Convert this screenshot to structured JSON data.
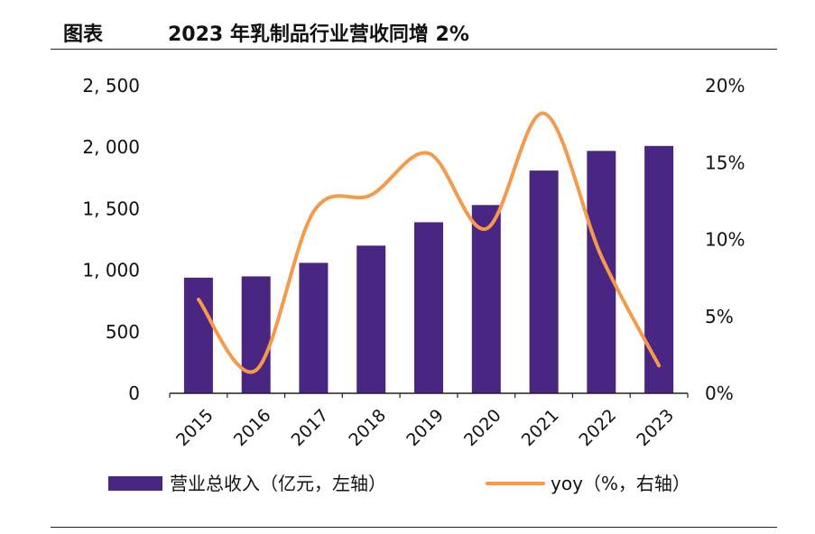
{
  "header": {
    "label": "图表",
    "title": "2023 年乳制品行业营收同增 2%"
  },
  "colors": {
    "bar": "#4a2683",
    "line": "#f59a4a",
    "axis": "#222222",
    "text": "#111111"
  },
  "chart_data": {
    "type": "bar",
    "categories": [
      "2015",
      "2016",
      "2017",
      "2018",
      "2019",
      "2020",
      "2021",
      "2022",
      "2023"
    ],
    "series": [
      {
        "name": "营业总收入（亿元，左轴）",
        "type": "bar",
        "axis": "left",
        "values": [
          940,
          950,
          1060,
          1200,
          1390,
          1530,
          1810,
          1970,
          2010
        ]
      },
      {
        "name": "yoy（%，右轴）",
        "type": "line",
        "axis": "right",
        "values": [
          6.1,
          1.5,
          11.8,
          12.9,
          15.6,
          10.7,
          18.2,
          8.9,
          1.8
        ]
      }
    ],
    "left_axis": {
      "ylim": [
        0,
        2500
      ],
      "ticks": [
        0,
        500,
        1000,
        1500,
        2000,
        2500
      ],
      "tick_labels": [
        "0",
        "500",
        "1, 000",
        "1, 500",
        "2, 000",
        "2, 500"
      ]
    },
    "right_axis": {
      "ylim": [
        0,
        20
      ],
      "ticks": [
        0,
        5,
        10,
        15,
        20
      ],
      "tick_labels": [
        "0%",
        "5%",
        "10%",
        "15%",
        "20%"
      ]
    },
    "grid": false,
    "legend": "bottom"
  }
}
